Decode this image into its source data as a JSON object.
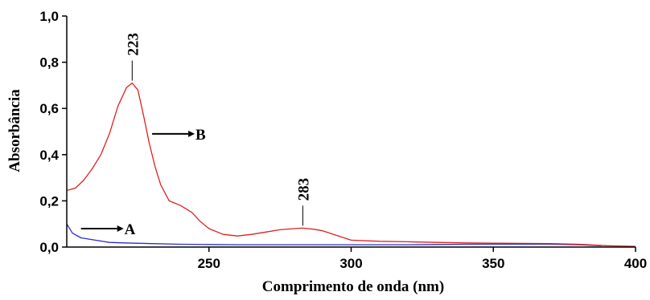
{
  "chart_data": {
    "type": "line",
    "title": "",
    "xlabel": "Comprimento de onda (nm)",
    "ylabel": "Absorbância",
    "xlim": [
      200,
      400
    ],
    "ylim": [
      0,
      1.0
    ],
    "x_ticks": [
      "250",
      "300",
      "350",
      "400"
    ],
    "y_ticks": [
      "0,0",
      "0,2",
      "0,4",
      "0,6",
      "0,8",
      "1,0"
    ],
    "grid": false,
    "series": [
      {
        "name": "A",
        "color": "#2b2bd6",
        "points": [
          [
            200,
            0.1
          ],
          [
            202,
            0.06
          ],
          [
            205,
            0.04
          ],
          [
            210,
            0.03
          ],
          [
            215,
            0.02
          ],
          [
            220,
            0.018
          ],
          [
            230,
            0.015
          ],
          [
            240,
            0.012
          ],
          [
            250,
            0.011
          ],
          [
            260,
            0.01
          ],
          [
            270,
            0.01
          ],
          [
            280,
            0.01
          ],
          [
            290,
            0.01
          ],
          [
            300,
            0.01
          ],
          [
            310,
            0.01
          ],
          [
            320,
            0.01
          ],
          [
            330,
            0.011
          ],
          [
            340,
            0.012
          ],
          [
            350,
            0.013
          ],
          [
            360,
            0.013
          ],
          [
            370,
            0.012
          ],
          [
            380,
            0.01
          ],
          [
            388,
            0.006
          ]
        ]
      },
      {
        "name": "B",
        "color": "#e02020",
        "points": [
          [
            200,
            0.245
          ],
          [
            203,
            0.255
          ],
          [
            206,
            0.29
          ],
          [
            209,
            0.34
          ],
          [
            212,
            0.4
          ],
          [
            215,
            0.49
          ],
          [
            218,
            0.61
          ],
          [
            221,
            0.69
          ],
          [
            223,
            0.71
          ],
          [
            225,
            0.68
          ],
          [
            227,
            0.57
          ],
          [
            229,
            0.45
          ],
          [
            231,
            0.35
          ],
          [
            233,
            0.27
          ],
          [
            236,
            0.2
          ],
          [
            240,
            0.18
          ],
          [
            244,
            0.15
          ],
          [
            247,
            0.11
          ],
          [
            250,
            0.08
          ],
          [
            255,
            0.055
          ],
          [
            260,
            0.048
          ],
          [
            265,
            0.055
          ],
          [
            270,
            0.065
          ],
          [
            275,
            0.075
          ],
          [
            280,
            0.08
          ],
          [
            283,
            0.082
          ],
          [
            287,
            0.077
          ],
          [
            290,
            0.07
          ],
          [
            295,
            0.05
          ],
          [
            300,
            0.03
          ],
          [
            310,
            0.025
          ],
          [
            320,
            0.023
          ],
          [
            330,
            0.02
          ],
          [
            340,
            0.018
          ],
          [
            350,
            0.017
          ],
          [
            360,
            0.016
          ],
          [
            370,
            0.015
          ],
          [
            380,
            0.012
          ],
          [
            390,
            0.006
          ],
          [
            400,
            0.003
          ]
        ]
      }
    ],
    "annotations": [
      {
        "text": "223",
        "x": 223,
        "y": 0.71
      },
      {
        "text": "283",
        "x": 283,
        "y": 0.082
      }
    ],
    "arrow_labels": [
      {
        "text": "B",
        "series": "B",
        "x": 230,
        "y": 0.49
      },
      {
        "text": "A",
        "series": "A",
        "x": 205,
        "y": 0.08
      }
    ]
  }
}
